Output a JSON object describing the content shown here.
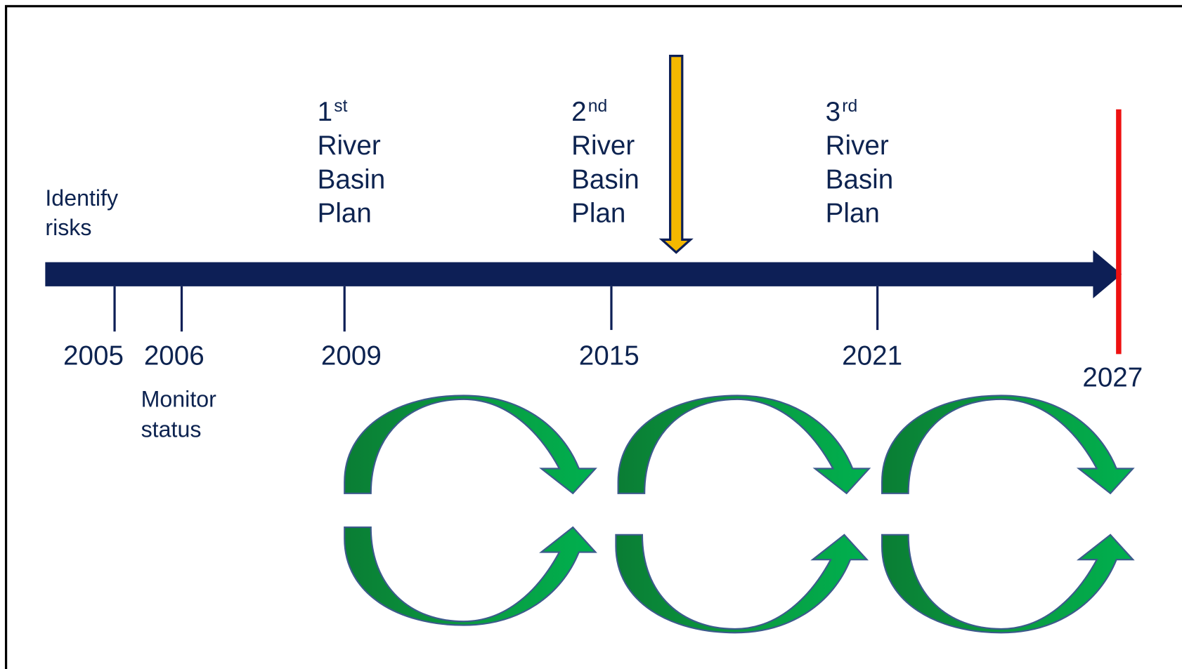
{
  "notes": [
    {
      "lines": [
        "Identify",
        "risks"
      ]
    },
    {
      "lines": [
        "Monitor",
        "status"
      ]
    }
  ],
  "plans": [
    {
      "ordinal": "1",
      "suffix": "st",
      "lines": [
        "River",
        "Basin",
        "Plan"
      ]
    },
    {
      "ordinal": "2",
      "suffix": "nd",
      "lines": [
        "River",
        "Basin",
        "Plan"
      ]
    },
    {
      "ordinal": "3",
      "suffix": "rd",
      "lines": [
        "River",
        "Basin",
        "Plan"
      ]
    }
  ],
  "years": [
    "2005",
    "2006",
    "2009",
    "2015",
    "2021",
    "2027"
  ]
}
